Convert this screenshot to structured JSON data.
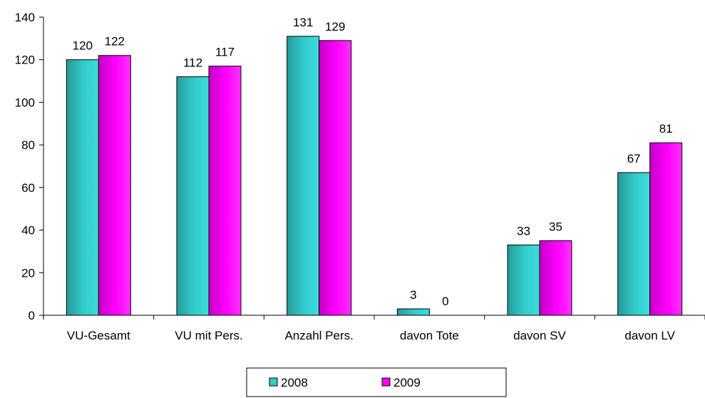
{
  "chart_data": {
    "type": "bar",
    "categories": [
      "VU-Gesamt",
      "VU mit Pers.",
      "Anzahl Pers.",
      "davon Tote",
      "davon SV",
      "davon LV"
    ],
    "series": [
      {
        "name": "2008",
        "values": [
          120,
          112,
          131,
          3,
          33,
          67
        ],
        "color": "#33CCCC"
      },
      {
        "name": "2009",
        "values": [
          122,
          117,
          129,
          0,
          35,
          81
        ],
        "color": "#FF00FF"
      }
    ],
    "ylim": [
      0,
      140
    ],
    "yticks": [
      0,
      20,
      40,
      60,
      80,
      100,
      120,
      140
    ],
    "title": "",
    "xlabel": "",
    "ylabel": "",
    "grid": false,
    "legend": "bottom-center",
    "data_labels": true
  }
}
